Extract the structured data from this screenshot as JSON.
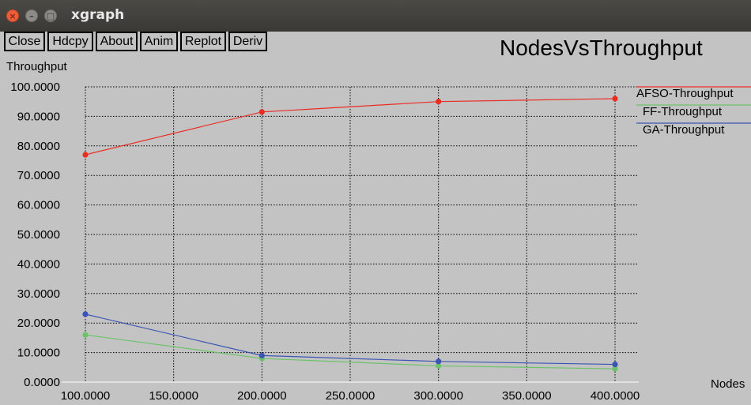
{
  "window": {
    "title": "xgraph"
  },
  "toolbar": [
    "Close",
    "Hdcpy",
    "About",
    "Anim",
    "Replot",
    "Deriv"
  ],
  "chart_data": {
    "type": "line",
    "title": "NodesVsThroughput",
    "xlabel": "Nodes",
    "ylabel": "Throughput",
    "x": [
      100,
      200,
      300,
      400
    ],
    "xlim": [
      100,
      400
    ],
    "ylim": [
      0,
      100
    ],
    "x_ticks": [
      "100.0000",
      "150.0000",
      "200.0000",
      "250.0000",
      "300.0000",
      "350.0000",
      "400.0000"
    ],
    "y_ticks": [
      "0.0000",
      "10.0000",
      "20.0000",
      "30.0000",
      "40.0000",
      "50.0000",
      "60.0000",
      "70.0000",
      "80.0000",
      "90.0000",
      "100.0000"
    ],
    "grid": true,
    "legend_position": "top-right",
    "series": [
      {
        "name": "AFSO-Throughput",
        "color": "#ec2c23",
        "values": [
          77,
          91.5,
          95,
          96
        ]
      },
      {
        "name": "FF-Throughput",
        "color": "#6cc36a",
        "values": [
          16,
          8,
          5.5,
          4.5
        ]
      },
      {
        "name": "GA-Throughput",
        "color": "#3a55b3",
        "values": [
          23,
          9,
          7,
          6
        ]
      }
    ]
  }
}
